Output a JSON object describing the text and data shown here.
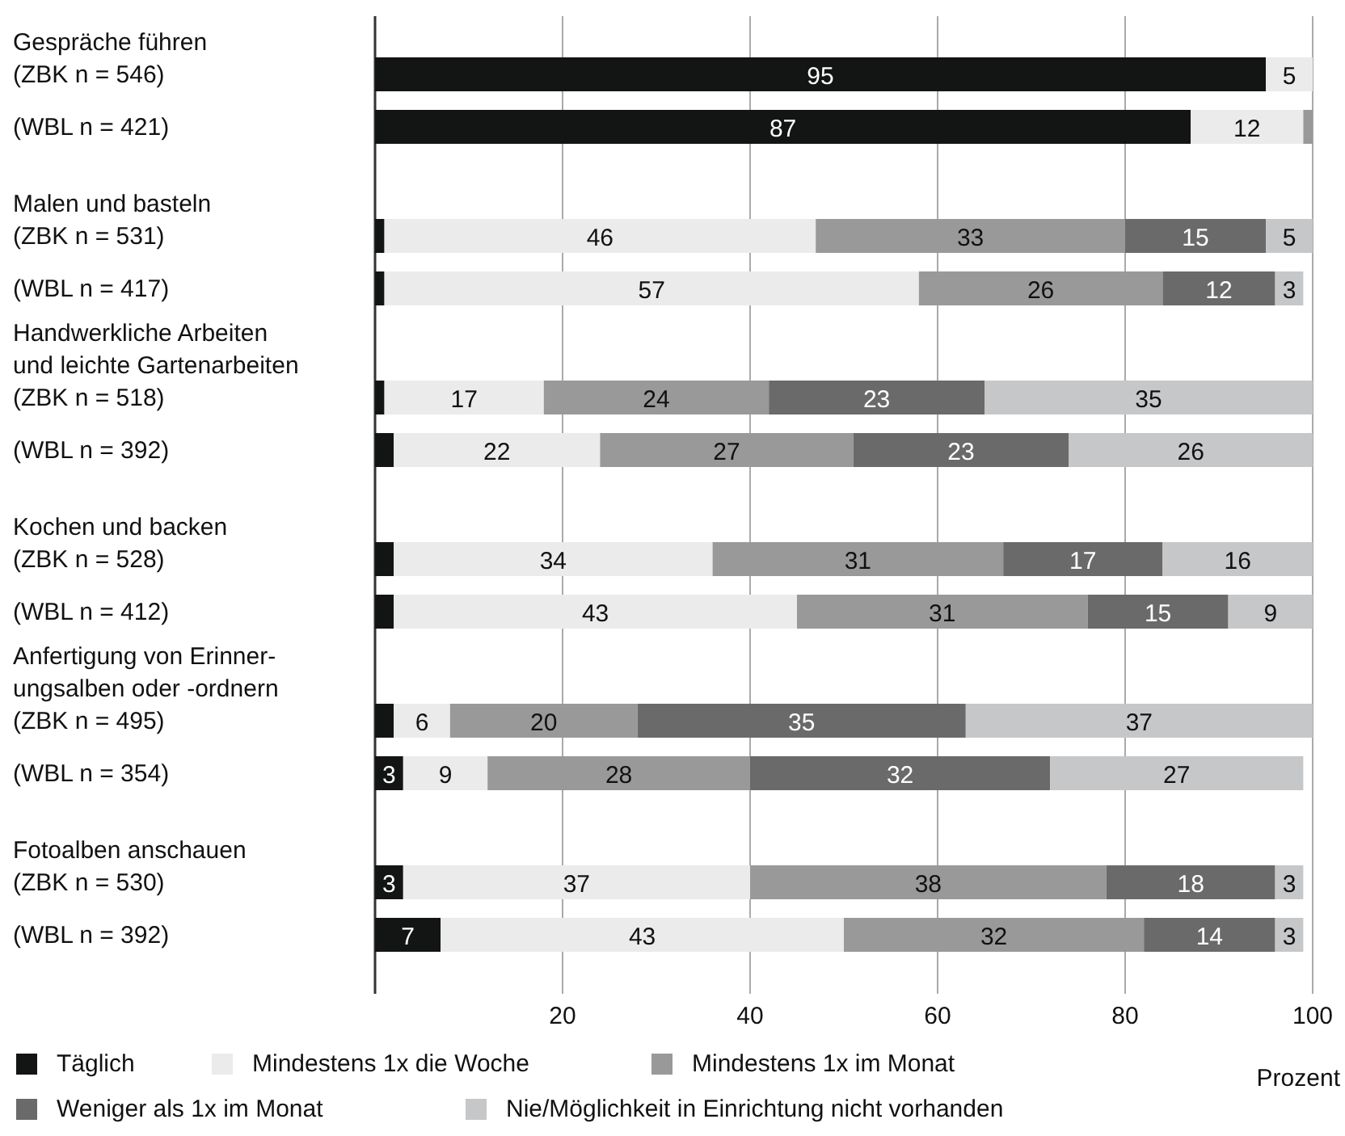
{
  "chart_data": {
    "type": "bar",
    "orientation": "horizontal",
    "stacked": true,
    "categories": [
      "Gespräche führen\n(ZBK n = 546)",
      "(WBL n = 421)",
      "Malen und basteln\n(ZBK n = 531)",
      "(WBL n = 417)",
      "Handwerkliche Arbeiten\nund leichte Gartenarbeiten\n(ZBK n = 518)",
      "(WBL n = 392)",
      "Kochen und backen\n(ZBK n = 528)",
      "(WBL n = 412)",
      "Anfertigung von Erinner-\nungsalben oder -ordnern\n(ZBK n = 495)",
      "(WBL n = 354)",
      "Fotoalben anschauen\n(ZBK n = 530)",
      "(WBL n = 392)"
    ],
    "series": [
      {
        "name": "Täglich",
        "color": "#131514",
        "values": [
          95,
          87,
          1,
          1,
          1,
          2,
          2,
          2,
          2,
          3,
          3,
          7
        ],
        "value_labels": [
          "95",
          "87",
          null,
          null,
          null,
          null,
          null,
          null,
          null,
          "3",
          "3",
          "7"
        ]
      },
      {
        "name": "Mindestens 1x die Woche",
        "color": "#ebebeb",
        "values": [
          5,
          12,
          46,
          57,
          17,
          22,
          34,
          43,
          6,
          9,
          37,
          43
        ],
        "value_labels": [
          "5",
          "12",
          "46",
          "57",
          "17",
          "22",
          "34",
          "43",
          "6",
          "9",
          "37",
          "43"
        ]
      },
      {
        "name": "Mindestens 1x im Monat",
        "color": "#999999",
        "values": [
          null,
          1,
          33,
          26,
          24,
          27,
          31,
          31,
          20,
          28,
          38,
          32
        ],
        "value_labels": [
          null,
          null,
          "33",
          "26",
          "24",
          "27",
          "31",
          "31",
          "20",
          "28",
          "38",
          "32"
        ]
      },
      {
        "name": "Weniger als 1x im Monat",
        "color": "#6a6a6a",
        "values": [
          null,
          null,
          15,
          12,
          23,
          23,
          17,
          15,
          35,
          32,
          18,
          14
        ],
        "value_labels": [
          null,
          null,
          "15",
          "12",
          "23",
          "23",
          "17",
          "15",
          "35",
          "32",
          "18",
          "14"
        ]
      },
      {
        "name": "Nie/Möglichkeit in Einrichtung nicht vorhanden",
        "color": "#c6c7c8",
        "values": [
          null,
          null,
          5,
          3,
          35,
          26,
          16,
          9,
          37,
          27,
          3,
          3
        ],
        "value_labels": [
          null,
          null,
          "5",
          "3",
          "35",
          "26",
          "16",
          "9",
          "37",
          "27",
          "3",
          "3"
        ]
      }
    ],
    "xlim": [
      0,
      100
    ],
    "xticks": [
      20,
      40,
      60,
      80,
      100
    ],
    "xlabel": "Prozent",
    "grid": "x",
    "legend": "bottom"
  }
}
